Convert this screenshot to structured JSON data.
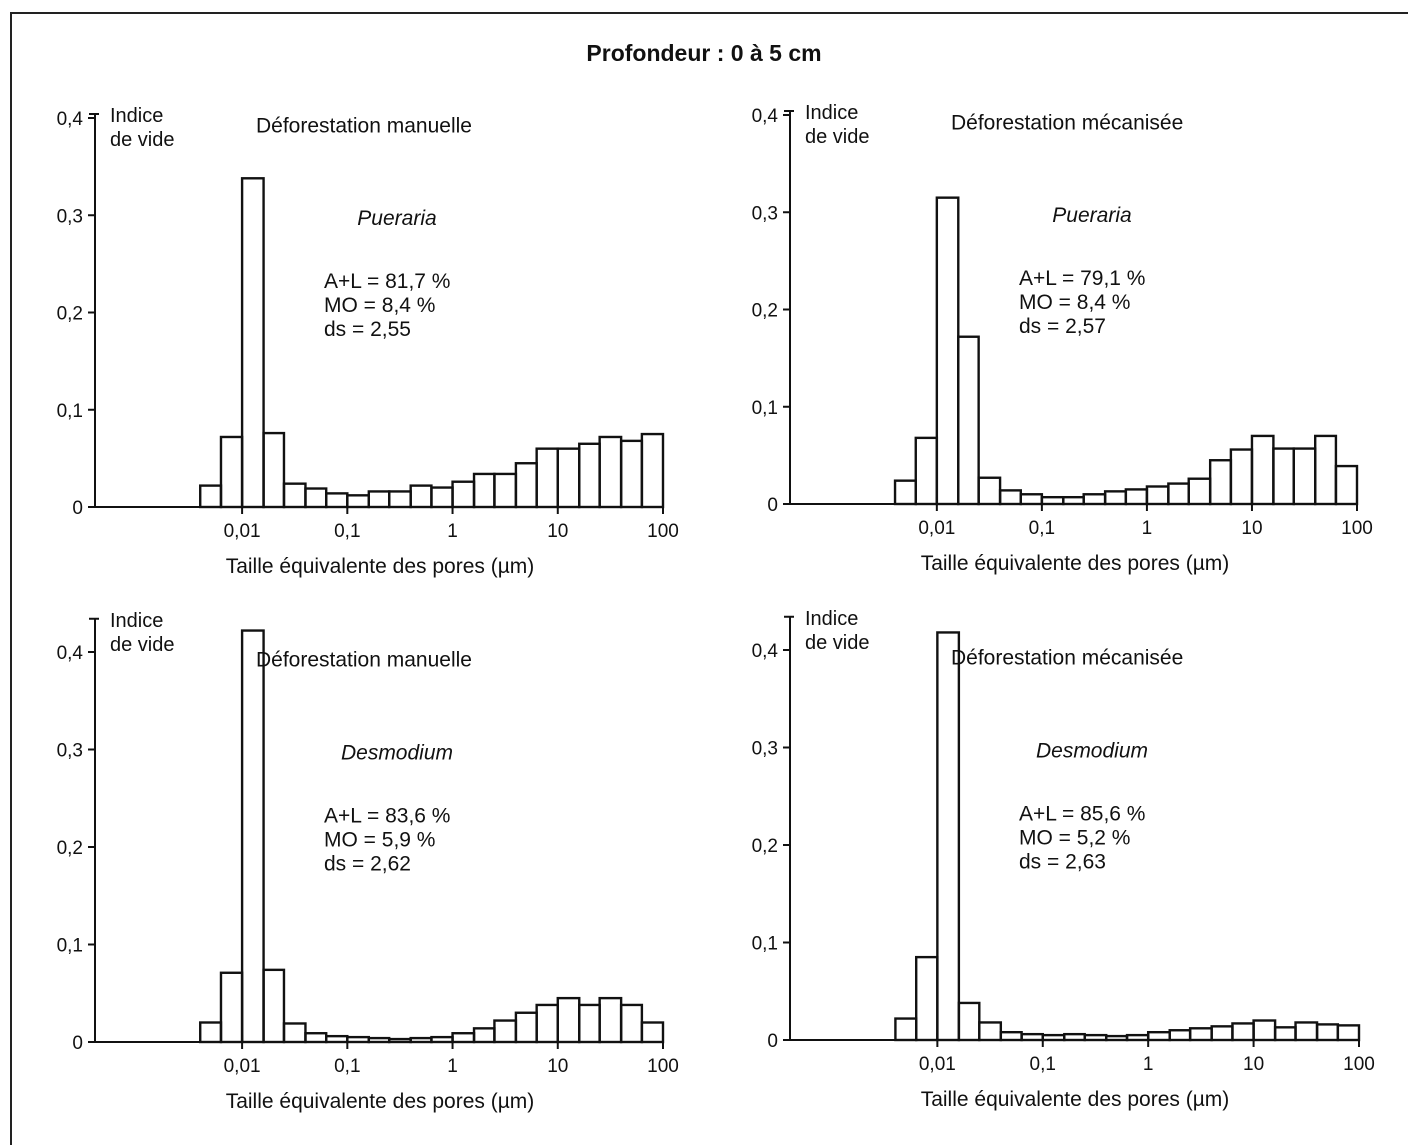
{
  "title": "Profondeur : 0 à 5 cm",
  "chart_data": [
    {
      "type": "bar",
      "subtitle": "Déforestation manuelle",
      "species": "Pueraria",
      "stats": [
        "A+L = 81,7 %",
        "MO = 8,4 %",
        "ds = 2,55"
      ],
      "ylabel": [
        "Indice",
        "de vide"
      ],
      "xlabel": "Taille équivalente des pores (µm)",
      "x_scale": "log",
      "xlim": [
        0.0004,
        100
      ],
      "ylim": [
        0,
        0.4
      ],
      "yticks": [
        0,
        0.1,
        0.2,
        0.3,
        0.4
      ],
      "ytick_labels": [
        "0",
        "0,1",
        "0,2",
        "0,3",
        "0,4"
      ],
      "xticks": [
        0.01,
        0.1,
        1,
        10,
        100
      ],
      "xtick_labels": [
        "0,01",
        "0,1",
        "1",
        "10",
        "100"
      ],
      "bin_edges": [
        0.004,
        0.0063,
        0.01,
        0.016,
        0.025,
        0.04,
        0.063,
        0.1,
        0.16,
        0.25,
        0.4,
        0.63,
        1,
        1.6,
        2.5,
        4,
        6.3,
        10,
        16,
        25,
        40,
        63,
        100
      ],
      "values": [
        0.022,
        0.072,
        0.338,
        0.076,
        0.024,
        0.019,
        0.014,
        0.012,
        0.016,
        0.016,
        0.022,
        0.02,
        0.026,
        0.034,
        0.034,
        0.045,
        0.06,
        0.06,
        0.065,
        0.072,
        0.068,
        0.075
      ]
    },
    {
      "type": "bar",
      "subtitle": "Déforestation mécanisée",
      "species": "Pueraria",
      "stats": [
        "A+L = 79,1 %",
        "MO = 8,4 %",
        "ds = 2,57"
      ],
      "ylabel": [
        "Indice",
        "de vide"
      ],
      "xlabel": "Taille équivalente des pores (µm)",
      "x_scale": "log",
      "xlim": [
        0.0004,
        100
      ],
      "ylim": [
        0,
        0.4
      ],
      "yticks": [
        0,
        0.1,
        0.2,
        0.3,
        0.4
      ],
      "ytick_labels": [
        "0",
        "0,1",
        "0,2",
        "0,3",
        "0,4"
      ],
      "xticks": [
        0.01,
        0.1,
        1,
        10,
        100
      ],
      "xtick_labels": [
        "0,01",
        "0,1",
        "1",
        "10",
        "100"
      ],
      "bin_edges": [
        0.004,
        0.0063,
        0.01,
        0.016,
        0.025,
        0.04,
        0.063,
        0.1,
        0.16,
        0.25,
        0.4,
        0.63,
        1,
        1.6,
        2.5,
        4,
        6.3,
        10,
        16,
        25,
        40,
        63,
        100
      ],
      "values": [
        0.024,
        0.068,
        0.315,
        0.172,
        0.027,
        0.014,
        0.01,
        0.007,
        0.007,
        0.01,
        0.013,
        0.015,
        0.018,
        0.021,
        0.026,
        0.045,
        0.056,
        0.07,
        0.057,
        0.057,
        0.07,
        0.039
      ]
    },
    {
      "type": "bar",
      "subtitle": "Déforestation manuelle",
      "species": "Desmodium",
      "stats": [
        "A+L = 83,6 %",
        "MO = 5,9 %",
        "ds = 2,62"
      ],
      "ylabel": [
        "Indice",
        "de vide"
      ],
      "xlabel": "Taille équivalente des pores (µm)",
      "x_scale": "log",
      "xlim": [
        0.0004,
        100
      ],
      "ylim": [
        0,
        0.43
      ],
      "yticks": [
        0,
        0.1,
        0.2,
        0.3,
        0.4
      ],
      "ytick_labels": [
        "0",
        "0,1",
        "0,2",
        "0,3",
        "0,4"
      ],
      "xticks": [
        0.01,
        0.1,
        1,
        10,
        100
      ],
      "xtick_labels": [
        "0,01",
        "0,1",
        "1",
        "10",
        "100"
      ],
      "bin_edges": [
        0.004,
        0.0063,
        0.01,
        0.016,
        0.025,
        0.04,
        0.063,
        0.1,
        0.16,
        0.25,
        0.4,
        0.63,
        1,
        1.6,
        2.5,
        4,
        6.3,
        10,
        16,
        25,
        40,
        63,
        100
      ],
      "values": [
        0.02,
        0.071,
        0.422,
        0.074,
        0.019,
        0.009,
        0.006,
        0.005,
        0.004,
        0.003,
        0.004,
        0.005,
        0.009,
        0.014,
        0.022,
        0.03,
        0.038,
        0.045,
        0.038,
        0.045,
        0.038,
        0.02
      ]
    },
    {
      "type": "bar",
      "subtitle": "Déforestation mécanisée",
      "species": "Desmodium",
      "stats": [
        "A+L = 85,6 %",
        "MO = 5,2 %",
        "ds = 2,63"
      ],
      "ylabel": [
        "Indice",
        "de vide"
      ],
      "xlabel": "Taille équivalente des pores (µm)",
      "x_scale": "log",
      "xlim": [
        0.0004,
        100
      ],
      "ylim": [
        0,
        0.43
      ],
      "yticks": [
        0,
        0.1,
        0.2,
        0.3,
        0.4
      ],
      "ytick_labels": [
        "0",
        "0,1",
        "0,2",
        "0,3",
        "0,4"
      ],
      "xticks": [
        0.01,
        0.1,
        1,
        10,
        100
      ],
      "xtick_labels": [
        "0,01",
        "0,1",
        "1",
        "10",
        "100"
      ],
      "bin_edges": [
        0.004,
        0.0063,
        0.01,
        0.016,
        0.025,
        0.04,
        0.063,
        0.1,
        0.16,
        0.25,
        0.4,
        0.63,
        1,
        1.6,
        2.5,
        4,
        6.3,
        10,
        16,
        25,
        40,
        63,
        100
      ],
      "values": [
        0.022,
        0.085,
        0.418,
        0.038,
        0.018,
        0.008,
        0.006,
        0.005,
        0.006,
        0.005,
        0.004,
        0.005,
        0.008,
        0.01,
        0.012,
        0.014,
        0.017,
        0.02,
        0.013,
        0.018,
        0.016,
        0.015
      ]
    }
  ]
}
